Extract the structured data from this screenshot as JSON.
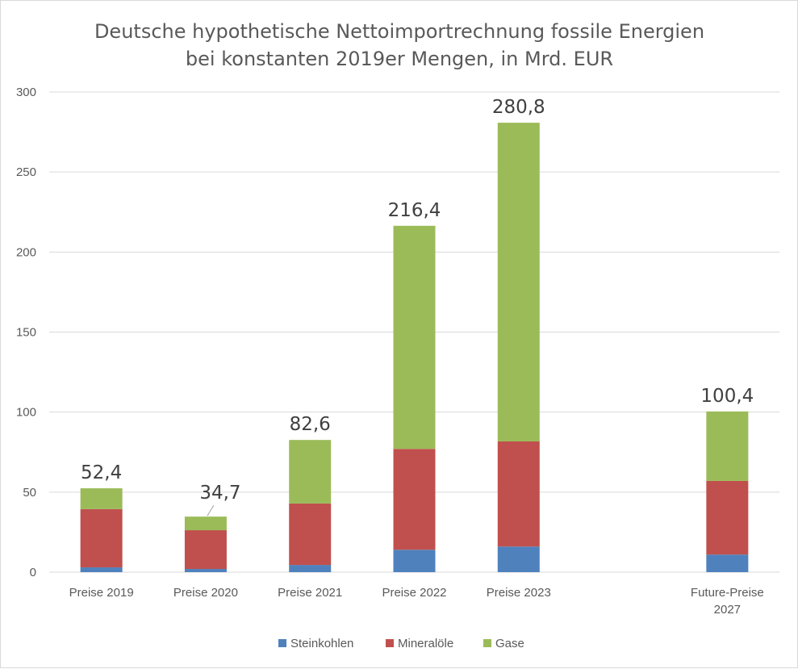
{
  "chart_data": {
    "type": "bar",
    "stacked": true,
    "title": [
      "Deutsche hypothetische Nettoimportrechnung fossile Energien",
      "bei konstanten 2019er Mengen, in Mrd. EUR"
    ],
    "categories": [
      [
        "Preise 2019"
      ],
      [
        "Preise 2020"
      ],
      [
        "Preise 2021"
      ],
      [
        "Preise 2022"
      ],
      [
        "Preise 2023"
      ],
      [
        ""
      ],
      [
        "Future-Preise",
        "2027"
      ]
    ],
    "series": [
      {
        "name": "Steinkohlen",
        "color": "#4f81bd",
        "values": [
          3.0,
          2.0,
          4.5,
          14.0,
          16.0,
          null,
          11.0
        ]
      },
      {
        "name": "Mineralöle",
        "color": "#c0504d",
        "values": [
          36.4,
          24.2,
          38.4,
          63.0,
          65.7,
          null,
          46.0
        ]
      },
      {
        "name": "Gase",
        "color": "#9bbb59",
        "values": [
          13.0,
          8.5,
          39.7,
          139.4,
          199.1,
          null,
          43.4
        ]
      }
    ],
    "totals": [
      "52,4",
      "34,7",
      "82,6",
      "216,4",
      "280,8",
      null,
      "100,4"
    ],
    "y_ticks": [
      0,
      50,
      100,
      150,
      200,
      250,
      300
    ],
    "ylim": [
      0,
      300
    ],
    "grid": true,
    "legend_position": "bottom"
  }
}
